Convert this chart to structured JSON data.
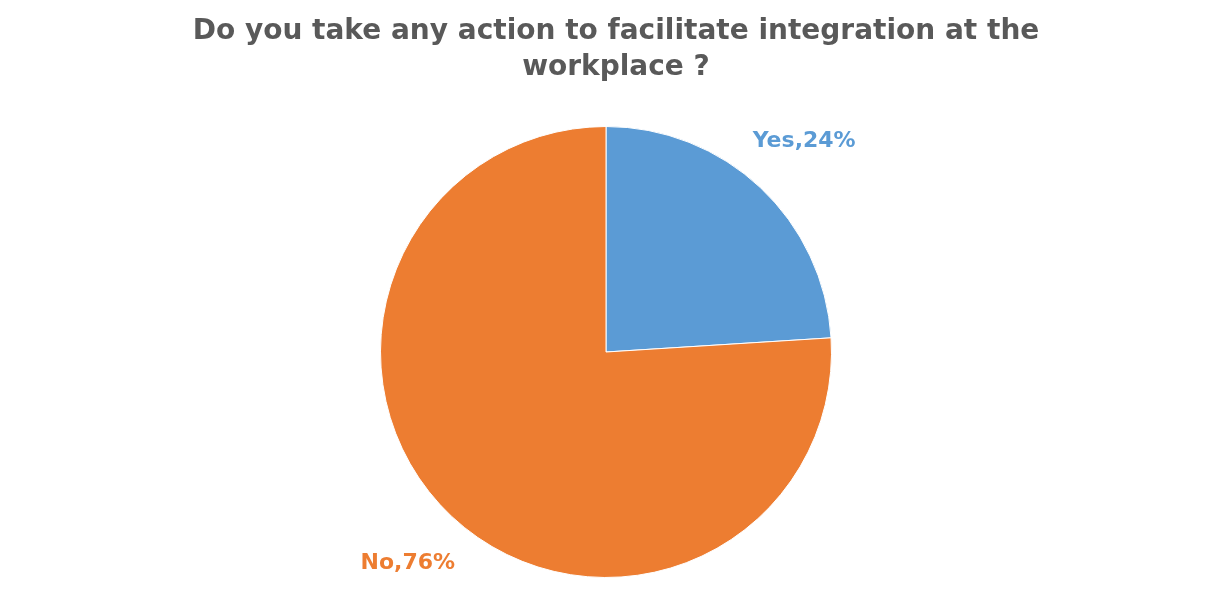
{
  "chart_data": {
    "type": "pie",
    "title": "Do you take any action to facilitate integration at the workplace ?",
    "categories": [
      "Yes",
      "No"
    ],
    "values": [
      24,
      76
    ],
    "colors": [
      "#5b9bd5",
      "#ed7d31"
    ],
    "value_labels": [
      "24%",
      "76%"
    ],
    "legend": false
  }
}
